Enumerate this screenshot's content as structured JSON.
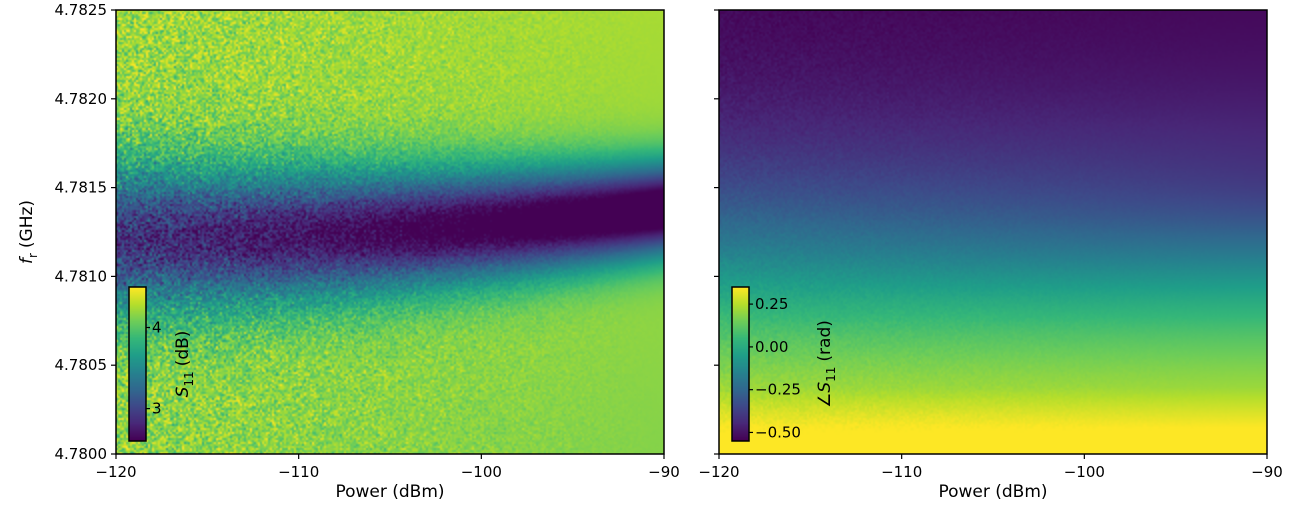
{
  "chart_data": [
    {
      "type": "heatmap",
      "panel": "magnitude",
      "xlabel": "Power (dBm)",
      "ylabel_main": "f",
      "ylabel_sub": "r",
      "ylabel_unit": "(GHz)",
      "x_ticks": [
        "−120",
        "−110",
        "−100",
        "−90"
      ],
      "x_tick_values": [
        -120,
        -110,
        -100,
        -90
      ],
      "y_ticks": [
        "4.7800",
        "4.7805",
        "4.7810",
        "4.7815",
        "4.7820",
        "4.7825"
      ],
      "y_tick_values": [
        4.78,
        4.7805,
        4.781,
        4.7815,
        4.782,
        4.7825
      ],
      "xlim": [
        -120,
        -90
      ],
      "ylim": [
        4.78,
        4.7825
      ],
      "colormap": "viridis",
      "resonance": {
        "f_at_-120": 4.78121,
        "f_at_-90": 4.78138,
        "min_value_at_-120": 2.9,
        "min_value_at_-90": 2.3
      },
      "background_value": 4.2,
      "noise_at_low_power": 0.5,
      "colorbar": {
        "label_main": "S",
        "label_sub": "11",
        "label_unit": "(dB)",
        "ticks": [
          "3",
          "4"
        ],
        "tick_values": [
          3,
          4
        ],
        "range": [
          2.6,
          4.5
        ],
        "position": "bottom-left"
      }
    },
    {
      "type": "heatmap",
      "panel": "phase",
      "xlabel": "Power (dBm)",
      "x_ticks": [
        "−120",
        "−110",
        "−100",
        "−90"
      ],
      "x_tick_values": [
        -120,
        -110,
        -100,
        -90
      ],
      "xlim": [
        -120,
        -90
      ],
      "ylim": [
        4.78,
        4.7825
      ],
      "colormap": "viridis",
      "phase_top": -0.55,
      "phase_bottom": 0.35,
      "resonance": {
        "f_at_-120": 4.78121,
        "f_at_-90": 4.78138
      },
      "colorbar": {
        "label_prefix": "∠S",
        "label_sub": "11",
        "label_unit": "(rad)",
        "ticks": [
          "0.25",
          "0.00",
          "−0.25",
          "−0.50"
        ],
        "tick_values": [
          0.25,
          0.0,
          -0.25,
          -0.5
        ],
        "range": [
          -0.55,
          0.35
        ],
        "position": "bottom-left"
      }
    }
  ]
}
